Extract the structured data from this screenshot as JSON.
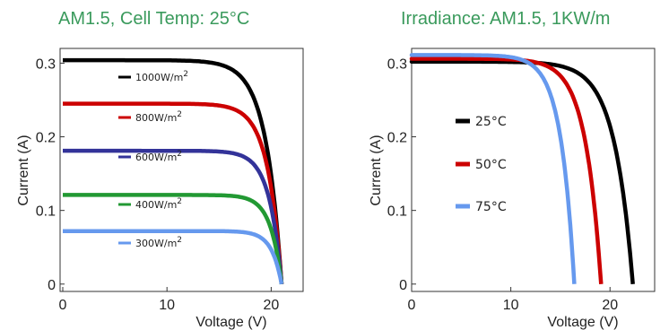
{
  "chart_data": [
    {
      "type": "line",
      "title": "AM1.5, Cell Temp: 25°C",
      "xlabel": "Voltage (V)",
      "ylabel": "Current (A)",
      "xlim": [
        0,
        24
      ],
      "ylim": [
        -0.01,
        0.32
      ],
      "xticks": [
        {
          "v": 0,
          "label": "0"
        },
        {
          "v": 10,
          "label": "10"
        },
        {
          "v": 20,
          "label": "20"
        }
      ],
      "yticks": [
        {
          "v": 0,
          "label": "0"
        },
        {
          "v": 0.1,
          "label": "0.1"
        },
        {
          "v": 0.2,
          "label": "0.2"
        },
        {
          "v": 0.3,
          "label": "0.3"
        }
      ],
      "legend_position": "center",
      "series": [
        {
          "name": "1000W/m",
          "sup": "2",
          "color": "#000000",
          "isc": 0.304,
          "voc": 21.0,
          "knee": 0.84,
          "sharp": 14
        },
        {
          "name": "800W/m",
          "sup": "2",
          "color": "#cc0000",
          "isc": 0.245,
          "voc": 21.0,
          "knee": 0.86,
          "sharp": 16
        },
        {
          "name": "600W/m",
          "sup": "2",
          "color": "#333399",
          "isc": 0.181,
          "voc": 21.0,
          "knee": 0.87,
          "sharp": 18
        },
        {
          "name": "400W/m",
          "sup": "2",
          "color": "#229933",
          "isc": 0.121,
          "voc": 21.0,
          "knee": 0.87,
          "sharp": 20
        },
        {
          "name": "300W/m",
          "sup": "2",
          "color": "#6699ee",
          "isc": 0.072,
          "voc": 21.0,
          "knee": 0.88,
          "sharp": 22
        }
      ]
    },
    {
      "type": "line",
      "title": "Irradiance: AM1.5,  1KW/m",
      "xlabel": "Voltage (V)",
      "ylabel": "Current (A)",
      "xlim": [
        0,
        24.5
      ],
      "ylim": [
        -0.01,
        0.32
      ],
      "xticks": [
        {
          "v": 0,
          "label": "0"
        },
        {
          "v": 10,
          "label": "10"
        },
        {
          "v": 20,
          "label": "20"
        }
      ],
      "yticks": [
        {
          "v": 0,
          "label": "0"
        },
        {
          "v": 0.1,
          "label": "0.1"
        },
        {
          "v": 0.2,
          "label": "0.2"
        },
        {
          "v": 0.3,
          "label": "0.3"
        }
      ],
      "legend_position": "left",
      "series": [
        {
          "name": "25°C",
          "color": "#000000",
          "isc": 0.302,
          "voc": 22.3,
          "knee": 0.8,
          "sharp": 12
        },
        {
          "name": "50°C",
          "color": "#cc0000",
          "isc": 0.306,
          "voc": 19.1,
          "knee": 0.78,
          "sharp": 12
        },
        {
          "name": "75°C",
          "color": "#6699ee",
          "isc": 0.311,
          "voc": 16.4,
          "knee": 0.78,
          "sharp": 12
        }
      ]
    }
  ]
}
